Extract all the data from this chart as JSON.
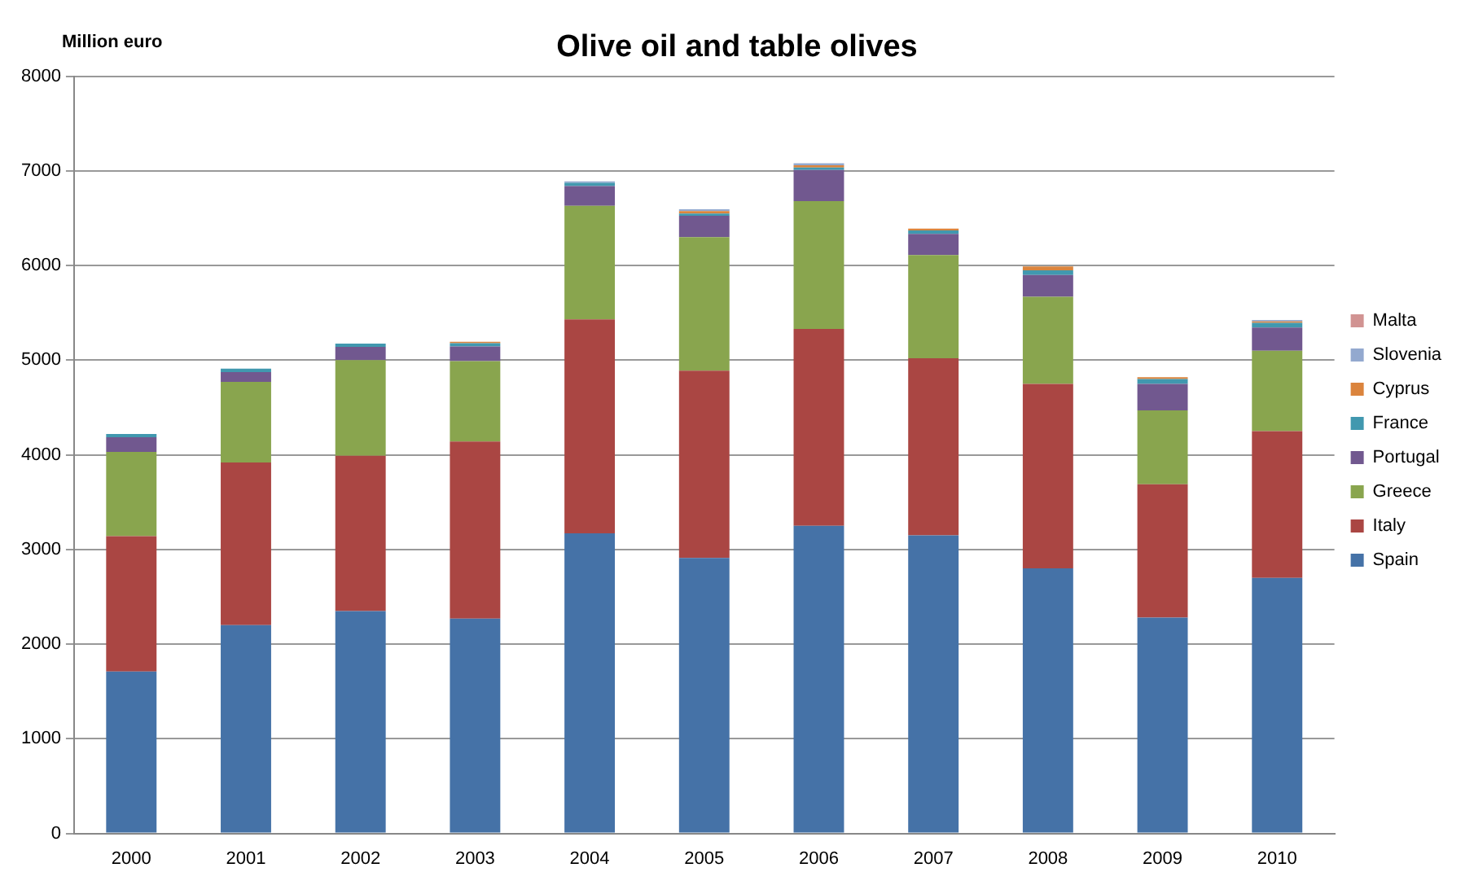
{
  "chart_data": {
    "type": "bar",
    "title": "Olive oil and table olives",
    "ylabel": "Million euro",
    "categories": [
      "2000",
      "2001",
      "2002",
      "2003",
      "2004",
      "2005",
      "2006",
      "2007",
      "2008",
      "2009",
      "2010"
    ],
    "stacked": true,
    "ylim": [
      0,
      8000
    ],
    "yticks": [
      0,
      1000,
      2000,
      3000,
      4000,
      5000,
      6000,
      7000,
      8000
    ],
    "grid": "y",
    "legend": "right",
    "series": [
      {
        "name": "Spain",
        "color": "#4572a7",
        "values": [
          1710,
          2200,
          2350,
          2270,
          3170,
          2910,
          3250,
          3150,
          2800,
          2280,
          2700
        ]
      },
      {
        "name": "Italy",
        "color": "#aa4643",
        "values": [
          1430,
          1720,
          1640,
          1870,
          2260,
          1980,
          2080,
          1870,
          1950,
          1410,
          1550
        ]
      },
      {
        "name": "Greece",
        "color": "#89a54e",
        "values": [
          890,
          850,
          1010,
          850,
          1200,
          1410,
          1350,
          1090,
          920,
          780,
          850
        ]
      },
      {
        "name": "Portugal",
        "color": "#71588f",
        "values": [
          155,
          105,
          140,
          155,
          210,
          225,
          330,
          225,
          230,
          280,
          245
        ]
      },
      {
        "name": "France",
        "color": "#4198af",
        "values": [
          35,
          35,
          35,
          35,
          35,
          25,
          25,
          35,
          50,
          50,
          50
        ]
      },
      {
        "name": "Cyprus",
        "color": "#db843d",
        "values": [
          0,
          0,
          0,
          15,
          null,
          25,
          25,
          20,
          40,
          20,
          15
        ]
      },
      {
        "name": "Slovenia",
        "color": "#93a9cf",
        "values": [
          0,
          0,
          0,
          0,
          15,
          20,
          20,
          0,
          0,
          0,
          15
        ]
      },
      {
        "name": "Malta",
        "color": "#d19392",
        "values": [
          0,
          0,
          0,
          0,
          0,
          0,
          0,
          0,
          0,
          0,
          0
        ]
      }
    ]
  }
}
